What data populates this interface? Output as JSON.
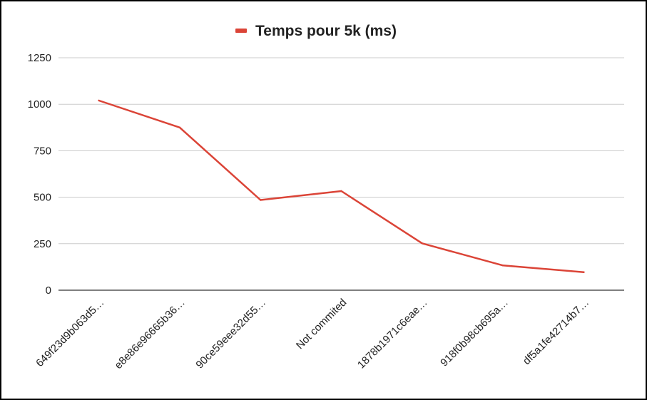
{
  "chart_data": {
    "type": "line",
    "title": "",
    "xlabel": "",
    "ylabel": "",
    "categories": [
      "649f23d9b063d5…",
      "e8e86e96665b36…",
      "90ce59eee32d55…",
      "Not commited",
      "1878b1971c6eae…",
      "918f0b98cb695a…",
      "df5a1fe42714b7…"
    ],
    "series": [
      {
        "name": "Temps pour 5k (ms)",
        "color": "#db4437",
        "values": [
          1020,
          875,
          485,
          533,
          252,
          133,
          97
        ]
      }
    ],
    "ylim": [
      0,
      1250
    ],
    "yticks": [
      0,
      250,
      500,
      750,
      1000,
      1250
    ],
    "ytick_labels": [
      "0",
      "250",
      "500",
      "750",
      "1000",
      "1250"
    ],
    "grid": true,
    "legend_position": "top-center"
  }
}
